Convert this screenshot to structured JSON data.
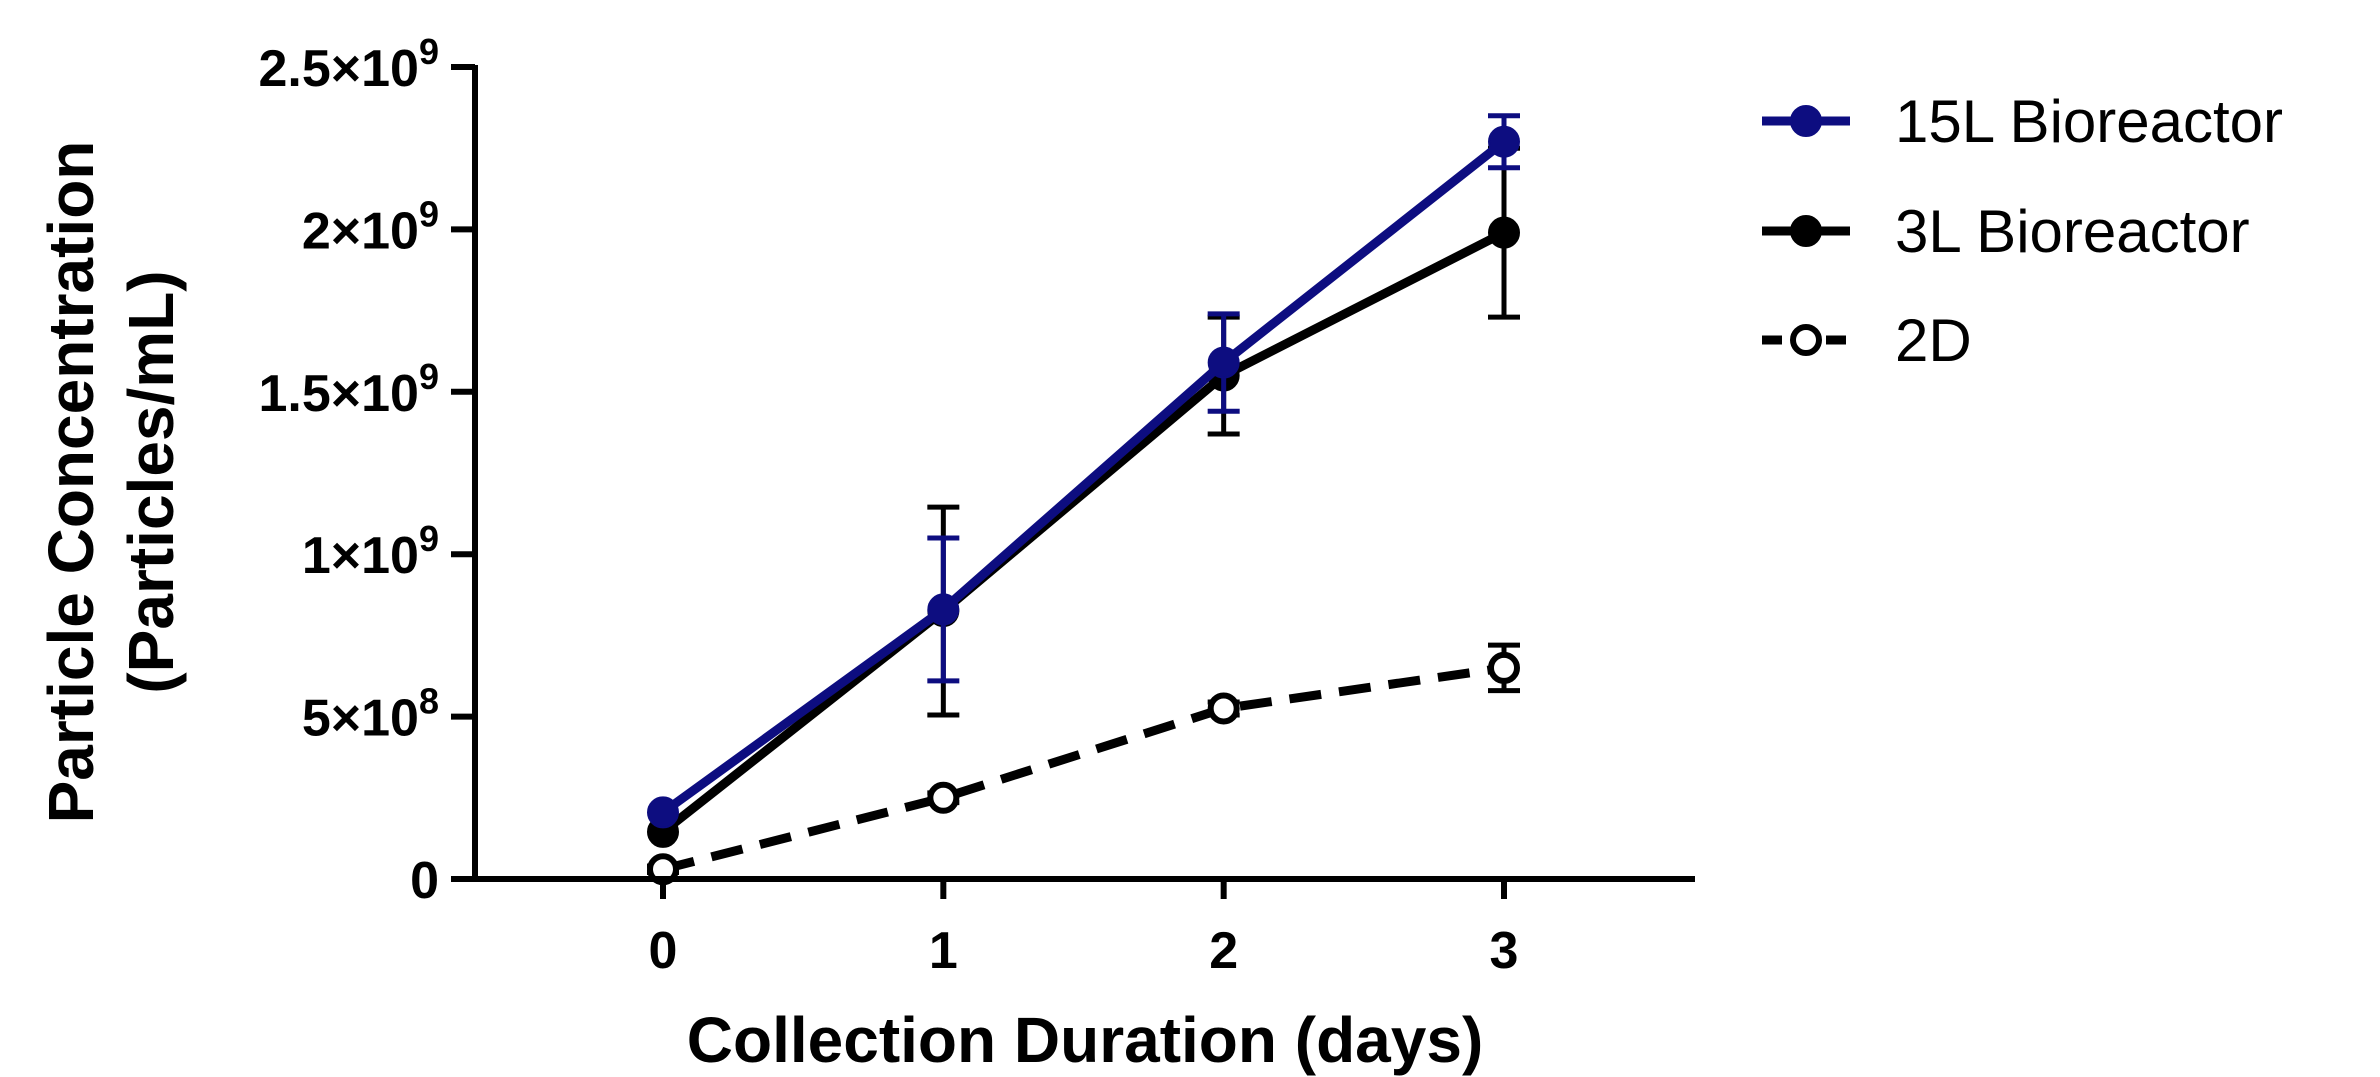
{
  "chart_data": {
    "type": "line",
    "xlabel": "Collection Duration (days)",
    "ylabel_line1": "Particle Concentration",
    "ylabel_line2": "(Particles/mL)",
    "x": [
      0,
      1,
      2,
      3
    ],
    "xlim": [
      -0.8,
      3.7
    ],
    "ylim": [
      0,
      2500000000
    ],
    "x_ticks": [
      {
        "value": 0,
        "label": "0"
      },
      {
        "value": 1,
        "label": "1"
      },
      {
        "value": 2,
        "label": "2"
      },
      {
        "value": 3,
        "label": "3"
      }
    ],
    "y_ticks": [
      {
        "value": 0,
        "label": "0",
        "mantissa": "0",
        "exponent": ""
      },
      {
        "value": 500000000,
        "label": "5×10^8",
        "mantissa": "5×10",
        "exponent": "8"
      },
      {
        "value": 1000000000,
        "label": "1×10^9",
        "mantissa": "1×10",
        "exponent": "9"
      },
      {
        "value": 1500000000,
        "label": "1.5×10^9",
        "mantissa": "1.5×10",
        "exponent": "9"
      },
      {
        "value": 2000000000,
        "label": "2×10^9",
        "mantissa": "2×10",
        "exponent": "9"
      },
      {
        "value": 2500000000,
        "label": "2.5×10^9",
        "mantissa": "2.5×10",
        "exponent": "9"
      }
    ],
    "grid": false,
    "legend_position": "top-right",
    "series": [
      {
        "name": "2D",
        "color": "#000000",
        "marker": "open-circle",
        "dashed": true,
        "values": [
          30000000,
          250000000,
          525000000,
          650000000
        ],
        "errors": [
          10000000,
          15000000,
          20000000,
          70000000
        ]
      },
      {
        "name": "3L Bioreactor",
        "color": "#000000",
        "marker": "filled-circle",
        "dashed": false,
        "values": [
          145000000,
          825000000,
          1550000000,
          1990000000
        ],
        "errors": [
          0,
          320000000,
          180000000,
          260000000
        ]
      },
      {
        "name": "15L Bioreactor",
        "color": "#0d0d80",
        "marker": "filled-circle",
        "dashed": false,
        "values": [
          205000000,
          830000000,
          1590000000,
          2270000000
        ],
        "errors": [
          0,
          220000000,
          150000000,
          80000000
        ]
      }
    ],
    "legend_order": [
      "15L Bioreactor",
      "3L Bioreactor",
      "2D"
    ]
  }
}
